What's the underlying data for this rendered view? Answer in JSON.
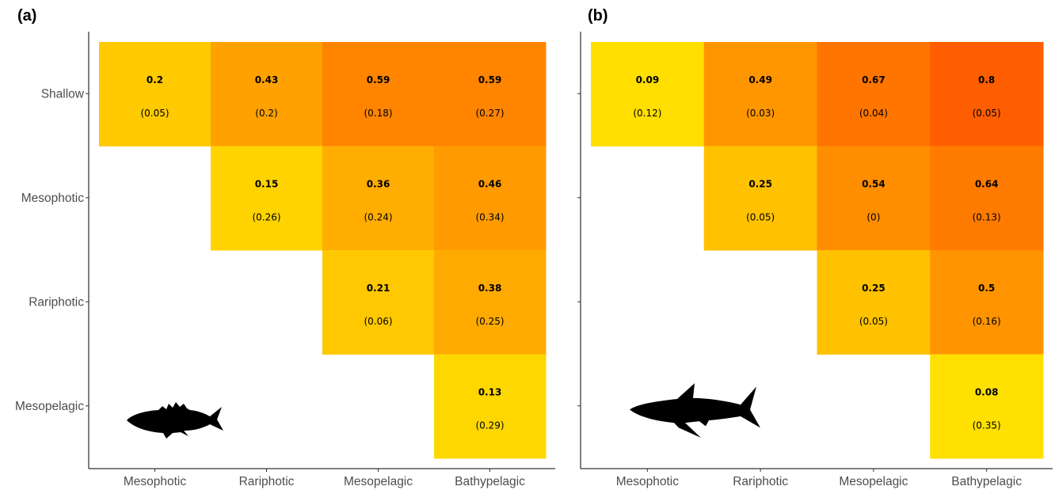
{
  "chart_data": [
    {
      "type": "heatmap",
      "panel_label": "(a)",
      "x_categories": [
        "Mesophotic",
        "Rariphotic",
        "Mesopelagic",
        "Bathypelagic"
      ],
      "y_categories": [
        "Shallow",
        "Mesophotic",
        "Rariphotic",
        "Mesopelagic"
      ],
      "y_tick_labels_shown": true,
      "silhouette": "fish-icon",
      "cells": [
        {
          "row": "Shallow",
          "col": "Mesophotic",
          "value": "0.2",
          "sd": "(0.05)"
        },
        {
          "row": "Shallow",
          "col": "Rariphotic",
          "value": "0.43",
          "sd": "(0.2)"
        },
        {
          "row": "Shallow",
          "col": "Mesopelagic",
          "value": "0.59",
          "sd": "(0.18)"
        },
        {
          "row": "Shallow",
          "col": "Bathypelagic",
          "value": "0.59",
          "sd": "(0.27)"
        },
        {
          "row": "Mesophotic",
          "col": "Rariphotic",
          "value": "0.15",
          "sd": "(0.26)"
        },
        {
          "row": "Mesophotic",
          "col": "Mesopelagic",
          "value": "0.36",
          "sd": "(0.24)"
        },
        {
          "row": "Mesophotic",
          "col": "Bathypelagic",
          "value": "0.46",
          "sd": "(0.34)"
        },
        {
          "row": "Rariphotic",
          "col": "Mesopelagic",
          "value": "0.21",
          "sd": "(0.06)"
        },
        {
          "row": "Rariphotic",
          "col": "Bathypelagic",
          "value": "0.38",
          "sd": "(0.25)"
        },
        {
          "row": "Mesopelagic",
          "col": "Bathypelagic",
          "value": "0.13",
          "sd": "(0.29)"
        }
      ]
    },
    {
      "type": "heatmap",
      "panel_label": "(b)",
      "x_categories": [
        "Mesophotic",
        "Rariphotic",
        "Mesopelagic",
        "Bathypelagic"
      ],
      "y_categories": [
        "Shallow",
        "Mesophotic",
        "Rariphotic",
        "Mesopelagic"
      ],
      "y_tick_labels_shown": false,
      "silhouette": "shark-icon",
      "cells": [
        {
          "row": "Shallow",
          "col": "Mesophotic",
          "value": "0.09",
          "sd": "(0.12)"
        },
        {
          "row": "Shallow",
          "col": "Rariphotic",
          "value": "0.49",
          "sd": "(0.03)"
        },
        {
          "row": "Shallow",
          "col": "Mesopelagic",
          "value": "0.67",
          "sd": "(0.04)"
        },
        {
          "row": "Shallow",
          "col": "Bathypelagic",
          "value": "0.8",
          "sd": "(0.05)"
        },
        {
          "row": "Mesophotic",
          "col": "Rariphotic",
          "value": "0.25",
          "sd": "(0.05)"
        },
        {
          "row": "Mesophotic",
          "col": "Mesopelagic",
          "value": "0.54",
          "sd": "(0)"
        },
        {
          "row": "Mesophotic",
          "col": "Bathypelagic",
          "value": "0.64",
          "sd": "(0.13)"
        },
        {
          "row": "Rariphotic",
          "col": "Mesopelagic",
          "value": "0.25",
          "sd": "(0.05)"
        },
        {
          "row": "Rariphotic",
          "col": "Bathypelagic",
          "value": "0.5",
          "sd": "(0.16)"
        },
        {
          "row": "Mesopelagic",
          "col": "Bathypelagic",
          "value": "0.08",
          "sd": "(0.35)"
        }
      ]
    }
  ],
  "color_scale": {
    "low": "#ffee00",
    "high": "#ff5500",
    "range": [
      0.0,
      0.85
    ]
  }
}
